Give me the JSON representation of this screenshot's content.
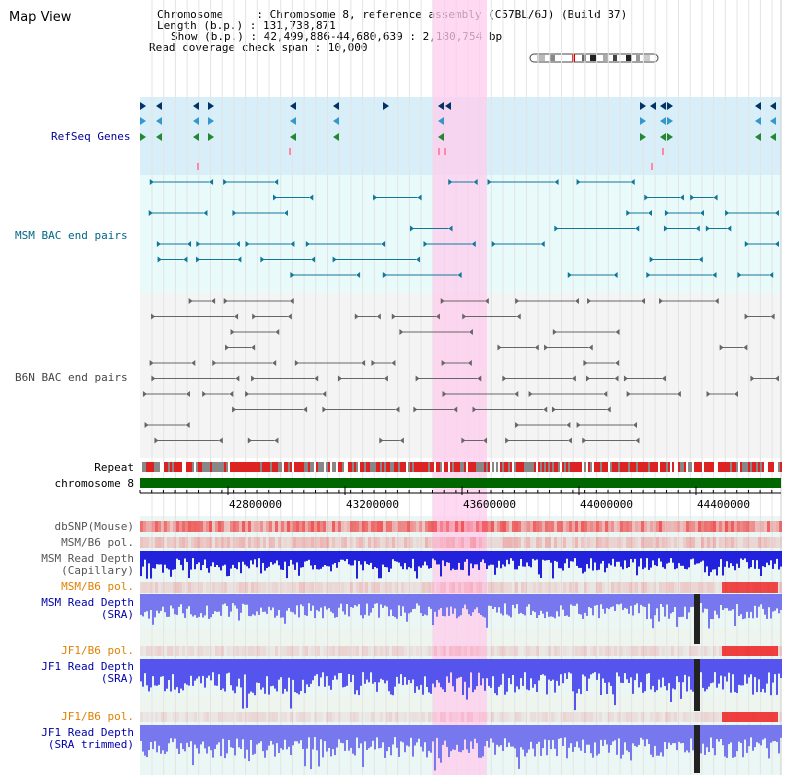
{
  "title": "Map View",
  "header": {
    "chromosome": "Chromosome     : Chromosome 8, reference assembly (C57BL/6J) (Build 37)",
    "length": "Length (b.p.) : 131,738,871",
    "show": "Show (b.p.) : 42,499,886-44,680,639 : 2,180,754 bp",
    "coverage": "Read coverage check span : 10,000"
  },
  "tracks": {
    "refseq": "RefSeq Genes",
    "msm_bac": "MSM BAC end pairs",
    "b6n_bac": "B6N BAC end pairs",
    "repeat": "Repeat",
    "chromosome": "chromosome 8",
    "dbsnp": "dbSNP(Mouse)",
    "msm_b6_pol_1": "MSM/B6 pol.",
    "msm_depth_cap_1": "MSM Read Depth",
    "msm_depth_cap_2": "(Capillary)",
    "msm_b6_pol_2": "MSM/B6 pol.",
    "msm_depth_sra_1": "MSM Read Depth",
    "msm_depth_sra_2": "(SRA)",
    "jf1_b6_pol_1": "JF1/B6 pol.",
    "jf1_depth_sra_1": "JF1 Read Depth",
    "jf1_depth_sra_2": "(SRA)",
    "jf1_b6_pol_2": "JF1/B6 pol.",
    "jf1_depth_trim_1": "JF1 Read Depth",
    "jf1_depth_trim_2": "(SRA trimmed)"
  },
  "axis_ticks": [
    "42800000",
    "43200000",
    "43600000",
    "44000000",
    "44400000"
  ],
  "colors": {
    "refseq_label": "#000099",
    "msm_label": "#006688",
    "b6n_label": "#444444",
    "pol_label": "#e08000",
    "depth_label": "#0000aa",
    "highlight": "#ffccee",
    "chromosome_bar": "#006600"
  }
}
